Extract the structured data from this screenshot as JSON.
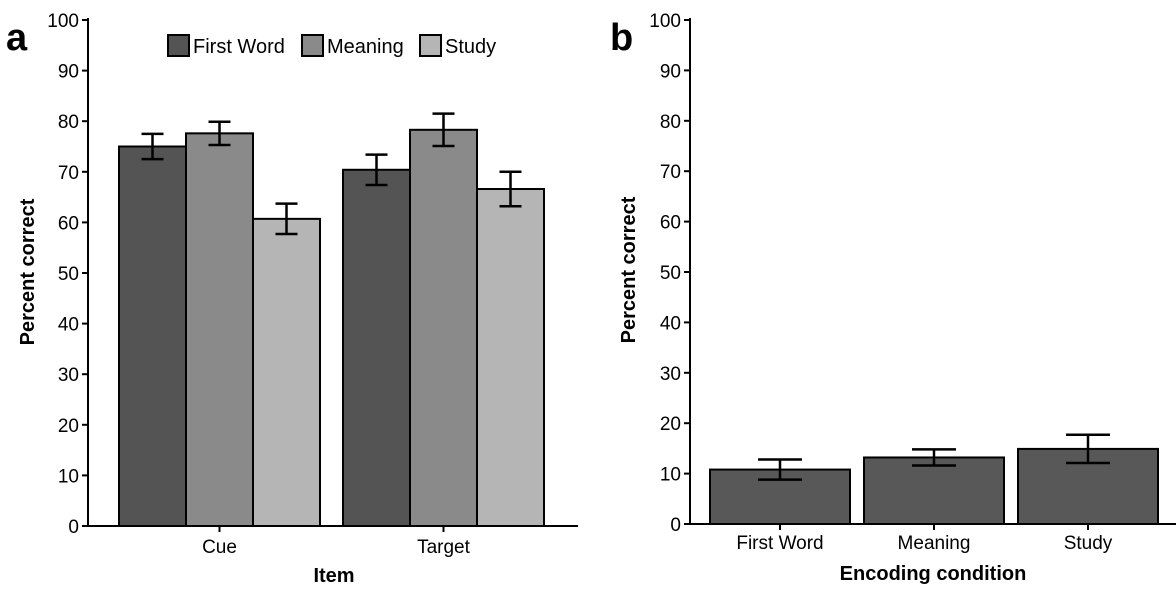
{
  "panels": {
    "a": {
      "letter": "a"
    },
    "b": {
      "letter": "b"
    }
  },
  "colors": {
    "first_word": "#545454",
    "meaning": "#8a8a8a",
    "study": "#b5b5b5",
    "single": "#585858"
  },
  "chart_data": [
    {
      "panel": "a",
      "type": "bar",
      "categories": [
        "Cue",
        "Target"
      ],
      "series": [
        {
          "name": "First Word",
          "values": [
            75.0,
            70.4
          ],
          "errors": [
            2.5,
            3.0
          ]
        },
        {
          "name": "Meaning",
          "values": [
            77.6,
            78.3
          ],
          "errors": [
            2.3,
            3.2
          ]
        },
        {
          "name": "Study",
          "values": [
            60.7,
            66.6
          ],
          "errors": [
            3.0,
            3.4
          ]
        }
      ],
      "xlabel": "Item",
      "ylabel": "Percent correct",
      "ylim": [
        0,
        100
      ],
      "yticks": [
        0,
        10,
        20,
        30,
        40,
        50,
        60,
        70,
        80,
        90,
        100
      ],
      "legend_position": "top"
    },
    {
      "panel": "b",
      "type": "bar",
      "categories": [
        "First Word",
        "Meaning",
        "Study"
      ],
      "values": [
        10.8,
        13.2,
        14.9
      ],
      "errors": [
        2.0,
        1.6,
        2.8
      ],
      "xlabel": "Encoding condition",
      "ylabel": "Percent correct",
      "ylim": [
        0,
        100
      ],
      "yticks": [
        0,
        10,
        20,
        30,
        40,
        50,
        60,
        70,
        80,
        90,
        100
      ]
    }
  ]
}
